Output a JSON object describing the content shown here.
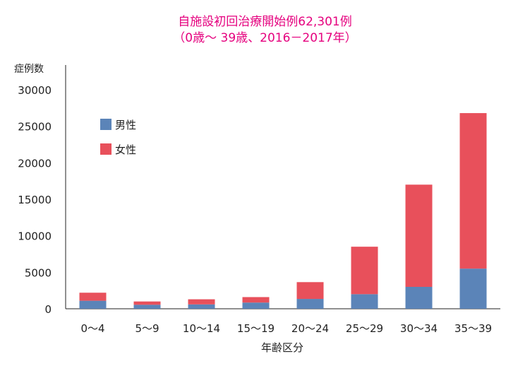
{
  "chart_data": {
    "type": "bar",
    "stacked": true,
    "title": "自施設初回治療開始例62,301例",
    "subtitle": "（0歳～ 39歳、2016－2017年）",
    "ylabel": "症例数",
    "xlabel": "年齢区分",
    "categories": [
      "0～4",
      "5～9",
      "10～14",
      "15～19",
      "20～24",
      "25～29",
      "30～34",
      "35～39"
    ],
    "series": [
      {
        "name": "男性",
        "color": "#5b84b8",
        "values": [
          1100,
          550,
          600,
          850,
          1350,
          2000,
          3000,
          5500
        ]
      },
      {
        "name": "女性",
        "color": "#e8505b",
        "values": [
          1100,
          450,
          700,
          750,
          2300,
          6500,
          14000,
          21300
        ]
      }
    ],
    "ylim": [
      0,
      30000
    ],
    "yticks": [
      0,
      5000,
      10000,
      15000,
      20000,
      25000,
      30000
    ],
    "legend_position": "top-left",
    "grid": false
  }
}
